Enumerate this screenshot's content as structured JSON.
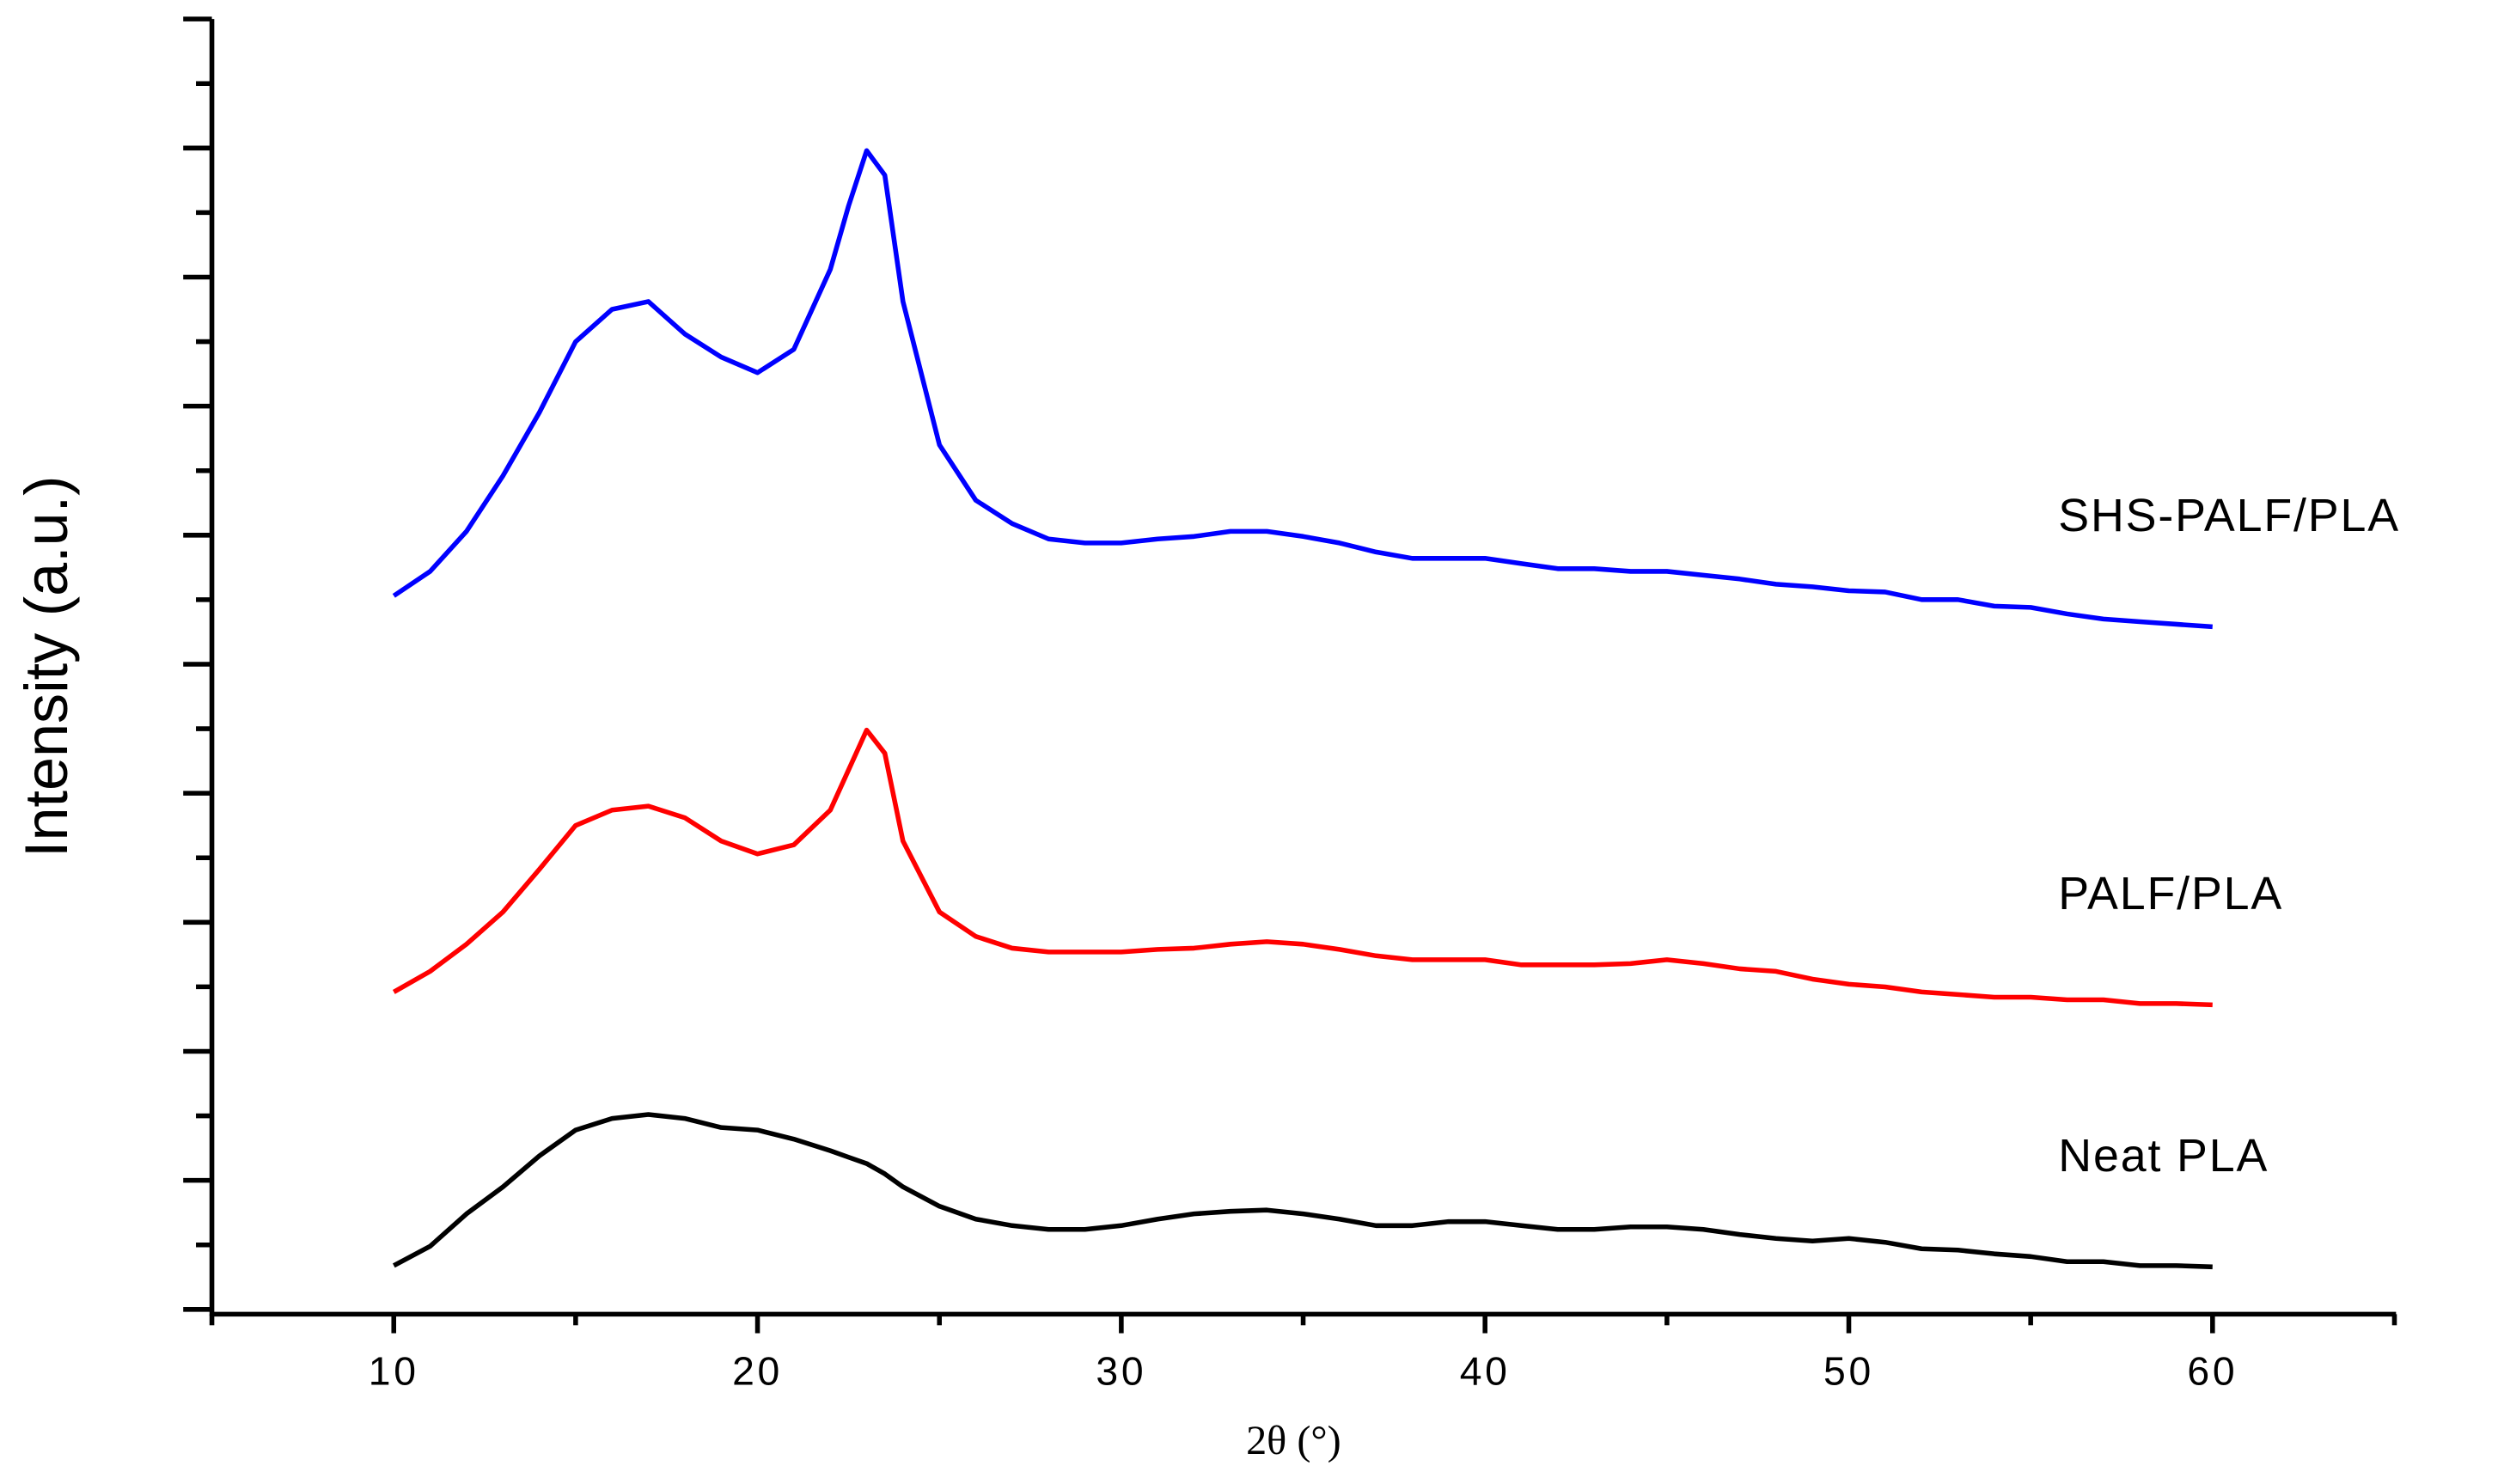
{
  "chart_data": {
    "type": "line",
    "x_label": "2θ (°)",
    "y_label": "Intensity (a.u.)",
    "x": [
      10,
      11,
      12,
      13,
      14,
      15,
      16,
      17,
      18,
      19,
      20,
      21,
      22,
      22.5,
      23,
      23.5,
      24,
      25,
      26,
      27,
      28,
      29,
      30,
      31,
      32,
      33,
      34,
      35,
      36,
      37,
      38,
      39,
      40,
      41,
      42,
      43,
      44,
      45,
      46,
      47,
      48,
      49,
      50,
      51,
      52,
      53,
      54,
      55,
      56,
      57,
      58,
      59,
      60
    ],
    "series": [
      {
        "name": "SHS-PALF/PLA",
        "color": "#0000ff",
        "values": [
          5.53,
          5.72,
          6.03,
          6.46,
          6.95,
          7.5,
          7.75,
          7.81,
          7.56,
          7.38,
          7.26,
          7.44,
          8.06,
          8.55,
          8.98,
          8.79,
          7.81,
          6.7,
          6.27,
          6.09,
          5.97,
          5.94,
          5.94,
          5.97,
          5.99,
          6.03,
          6.03,
          5.99,
          5.94,
          5.87,
          5.82,
          5.82,
          5.82,
          5.78,
          5.74,
          5.74,
          5.72,
          5.72,
          5.69,
          5.66,
          5.62,
          5.6,
          5.57,
          5.56,
          5.5,
          5.5,
          5.45,
          5.44,
          5.39,
          5.35,
          5.33,
          5.31,
          5.29
        ]
      },
      {
        "name": "PALF/PLA",
        "color": "#ff0000",
        "values": [
          2.46,
          2.62,
          2.83,
          3.08,
          3.41,
          3.75,
          3.87,
          3.9,
          3.81,
          3.63,
          3.53,
          3.6,
          3.87,
          4.18,
          4.49,
          4.31,
          3.63,
          3.08,
          2.89,
          2.8,
          2.77,
          2.77,
          2.77,
          2.79,
          2.8,
          2.83,
          2.85,
          2.83,
          2.79,
          2.74,
          2.71,
          2.71,
          2.71,
          2.67,
          2.67,
          2.67,
          2.68,
          2.71,
          2.68,
          2.64,
          2.62,
          2.56,
          2.52,
          2.5,
          2.46,
          2.44,
          2.42,
          2.42,
          2.4,
          2.4,
          2.37,
          2.37,
          2.36
        ]
      },
      {
        "name": "Neat PLA",
        "color": "#000000",
        "values": [
          0.34,
          0.49,
          0.74,
          0.95,
          1.19,
          1.39,
          1.48,
          1.51,
          1.48,
          1.41,
          1.39,
          1.32,
          1.23,
          1.18,
          1.13,
          1.05,
          0.95,
          0.8,
          0.7,
          0.65,
          0.62,
          0.62,
          0.65,
          0.7,
          0.74,
          0.76,
          0.77,
          0.74,
          0.7,
          0.65,
          0.65,
          0.68,
          0.68,
          0.65,
          0.62,
          0.62,
          0.64,
          0.64,
          0.62,
          0.58,
          0.55,
          0.53,
          0.55,
          0.52,
          0.47,
          0.46,
          0.43,
          0.41,
          0.37,
          0.37,
          0.34,
          0.34,
          0.33
        ]
      }
    ],
    "xlim": [
      5,
      65
    ],
    "xticks": [
      10,
      20,
      30,
      40,
      50,
      60
    ],
    "xminor": [
      5,
      15,
      25,
      35,
      45,
      55,
      65
    ],
    "ylim": [
      0,
      10
    ],
    "yticks": [
      0,
      0.5,
      1,
      1.5,
      2,
      2.5,
      3,
      3.5,
      4,
      4.5,
      5,
      5.5,
      6,
      6.5,
      7,
      7.5,
      8,
      8.5,
      9,
      9.5,
      10
    ]
  }
}
